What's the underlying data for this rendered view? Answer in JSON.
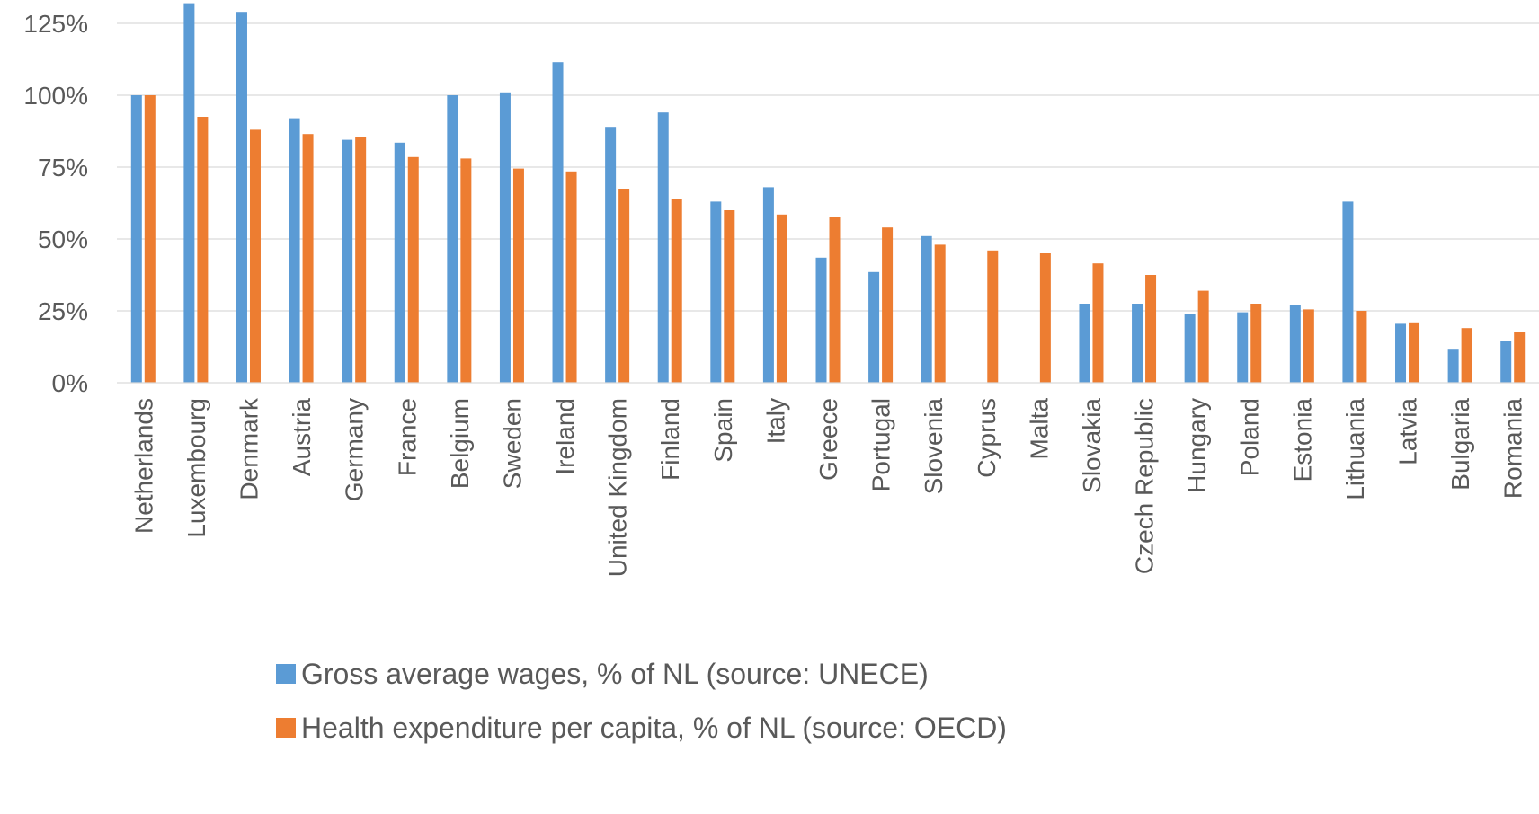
{
  "chart_data": {
    "type": "bar",
    "title": "",
    "xlabel": "",
    "ylabel": "",
    "ylim": [
      0,
      135
    ],
    "yticks": [
      0,
      25,
      50,
      75,
      100,
      125
    ],
    "ytick_labels": [
      "0%",
      "25%",
      "50%",
      "75%",
      "100%",
      "125%"
    ],
    "grid": true,
    "legend_position": "bottom",
    "categories": [
      "Netherlands",
      "Luxembourg",
      "Denmark",
      "Austria",
      "Germany",
      "France",
      "Belgium",
      "Sweden",
      "Ireland",
      "United Kingdom",
      "Finland",
      "Spain",
      "Italy",
      "Greece",
      "Portugal",
      "Slovenia",
      "Cyprus",
      "Malta",
      "Slovakia",
      "Czech Republic",
      "Hungary",
      "Poland",
      "Estonia",
      "Lithuania",
      "Latvia",
      "Bulgaria",
      "Romania"
    ],
    "series": [
      {
        "name": "Gross average wages, % of NL (source: UNECE)",
        "color": "#5B9BD5",
        "values": [
          100,
          132,
          129,
          92,
          84.5,
          83.5,
          100,
          101,
          111.5,
          89,
          94,
          63,
          68,
          43.5,
          38.5,
          51,
          null,
          null,
          27.5,
          27.5,
          24,
          24.5,
          27,
          63,
          20.5,
          11.5,
          14.5
        ]
      },
      {
        "name": "Health expenditure per capita, % of NL (source: OECD)",
        "color": "#ED7D31",
        "values": [
          100,
          92.5,
          88,
          86.5,
          85.5,
          78.5,
          78,
          74.5,
          73.5,
          67.5,
          64,
          60,
          58.5,
          57.5,
          54,
          48,
          46,
          45,
          41.5,
          37.5,
          32,
          27.5,
          25.5,
          25,
          21,
          19,
          17.5
        ]
      }
    ]
  }
}
